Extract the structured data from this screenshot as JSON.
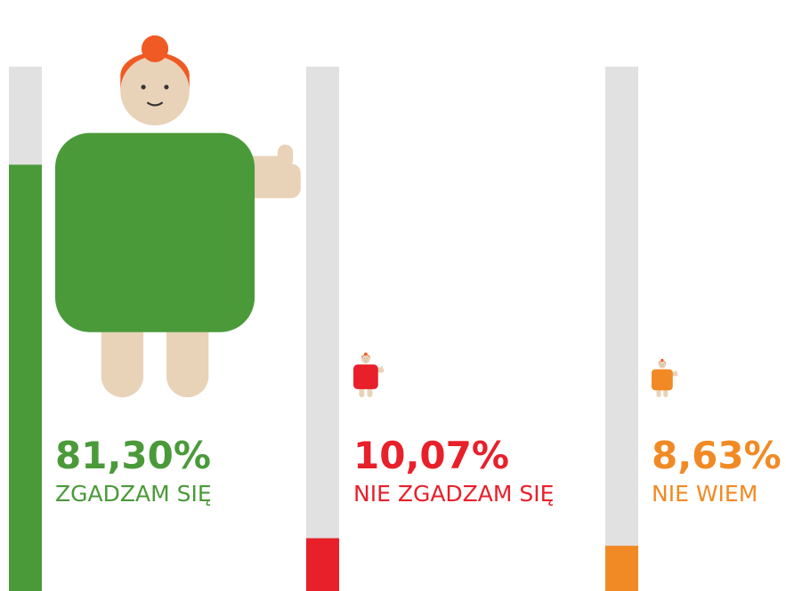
{
  "chart_data": {
    "type": "bar",
    "categories": [
      "ZGADZAM SIĘ",
      "NIE ZGADZAM SIĘ",
      "NIE WIEM"
    ],
    "values": [
      81.3,
      10.07,
      8.63
    ],
    "value_labels": [
      "81,30%",
      "10,07%",
      "8,63%"
    ],
    "colors": [
      "#4a9a3a",
      "#e8202a",
      "#f18a24"
    ],
    "ylim": [
      0,
      100
    ]
  }
}
